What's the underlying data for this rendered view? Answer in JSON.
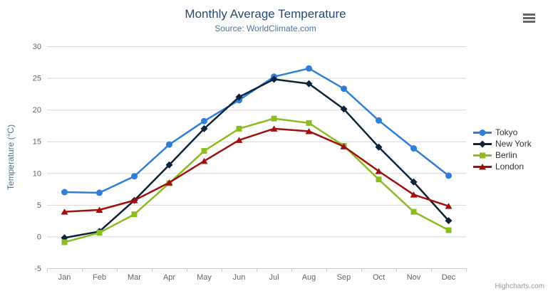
{
  "header": {
    "title": "Monthly Average Temperature",
    "subtitle": "Source: WorldClimate.com"
  },
  "credits": {
    "label": "Highcharts.com"
  },
  "styles": {
    "title_color": "#274b6d",
    "subtitle_color": "#4d759e",
    "axis_label_color": "#666666",
    "axis_title_color": "#4d759e",
    "grid_color": "#d8d8d8",
    "axis_line_color": "#c0d0e0",
    "legend_text_color": "#333333",
    "credits_color": "#999999",
    "menu_icon_color": "#666666"
  },
  "chart_data": {
    "type": "line",
    "title": "Monthly Average Temperature",
    "subtitle": "Source: WorldClimate.com",
    "categories": [
      "Jan",
      "Feb",
      "Mar",
      "Apr",
      "May",
      "Jun",
      "Jul",
      "Aug",
      "Sep",
      "Oct",
      "Nov",
      "Dec"
    ],
    "series": [
      {
        "name": "Tokyo",
        "color": "#2f7ed8",
        "marker": "circle",
        "values": [
          7.0,
          6.9,
          9.5,
          14.5,
          18.2,
          21.5,
          25.2,
          26.5,
          23.3,
          18.3,
          13.9,
          9.6
        ]
      },
      {
        "name": "New York",
        "color": "#0d233a",
        "marker": "diamond",
        "values": [
          -0.2,
          0.8,
          5.7,
          11.3,
          17.0,
          22.0,
          24.8,
          24.1,
          20.1,
          14.1,
          8.6,
          2.5
        ]
      },
      {
        "name": "Berlin",
        "color": "#8bbc21",
        "marker": "square",
        "values": [
          -0.9,
          0.6,
          3.5,
          8.4,
          13.5,
          17.0,
          18.6,
          17.9,
          14.3,
          9.0,
          3.9,
          1.0
        ]
      },
      {
        "name": "London",
        "color": "#a01010",
        "marker": "triangle",
        "values": [
          3.9,
          4.2,
          5.7,
          8.5,
          11.9,
          15.2,
          17.0,
          16.6,
          14.2,
          10.3,
          6.6,
          4.8
        ]
      }
    ],
    "xlabel": "",
    "ylabel": "Temperature (°C)",
    "ylim": [
      -5,
      30
    ],
    "yticks": [
      -5,
      0,
      5,
      10,
      15,
      20,
      25,
      30
    ],
    "grid": "horizontal",
    "legend_position": "right"
  }
}
